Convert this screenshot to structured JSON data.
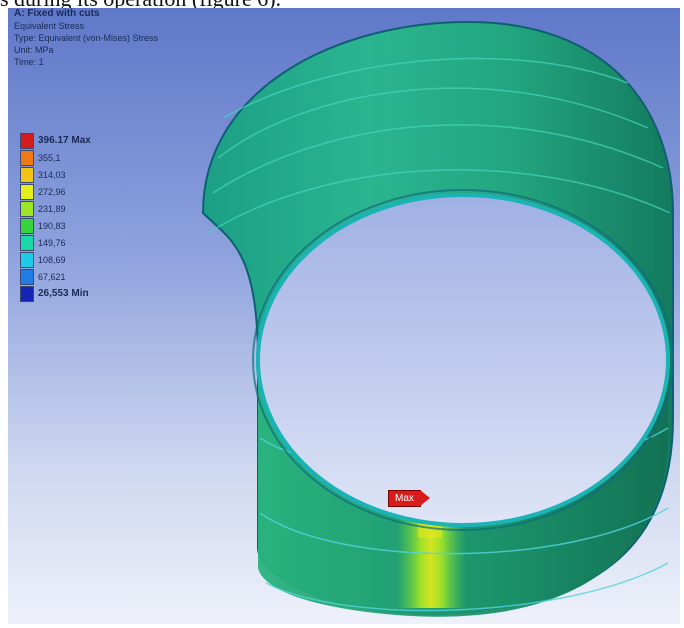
{
  "caption": "s during its operation (figure 6).",
  "info": {
    "title": "A: Fixed with cuts",
    "lines": [
      "Equivalent Stress",
      "Type: Equivalent (von-Mises) Stress",
      "Unit: MPa",
      "Time: 1"
    ]
  },
  "legend": {
    "entries": [
      {
        "label": "396.17 Max",
        "color": "#d51b1b",
        "emphasis": true
      },
      {
        "label": "355,1",
        "color": "#ef7a13",
        "emphasis": false
      },
      {
        "label": "314,03",
        "color": "#f2c415",
        "emphasis": false
      },
      {
        "label": "272,96",
        "color": "#e5ef1a",
        "emphasis": false
      },
      {
        "label": "231,89",
        "color": "#9de625",
        "emphasis": false
      },
      {
        "label": "190,83",
        "color": "#34d63b",
        "emphasis": false
      },
      {
        "label": "149,76",
        "color": "#1bd8a7",
        "emphasis": false
      },
      {
        "label": "108,69",
        "color": "#20cbe7",
        "emphasis": false
      },
      {
        "label": "67,621",
        "color": "#1f7de3",
        "emphasis": false
      },
      {
        "label": "26,553 Min",
        "color": "#1424b4",
        "emphasis": true
      }
    ]
  },
  "probe": {
    "label": "Max"
  }
}
